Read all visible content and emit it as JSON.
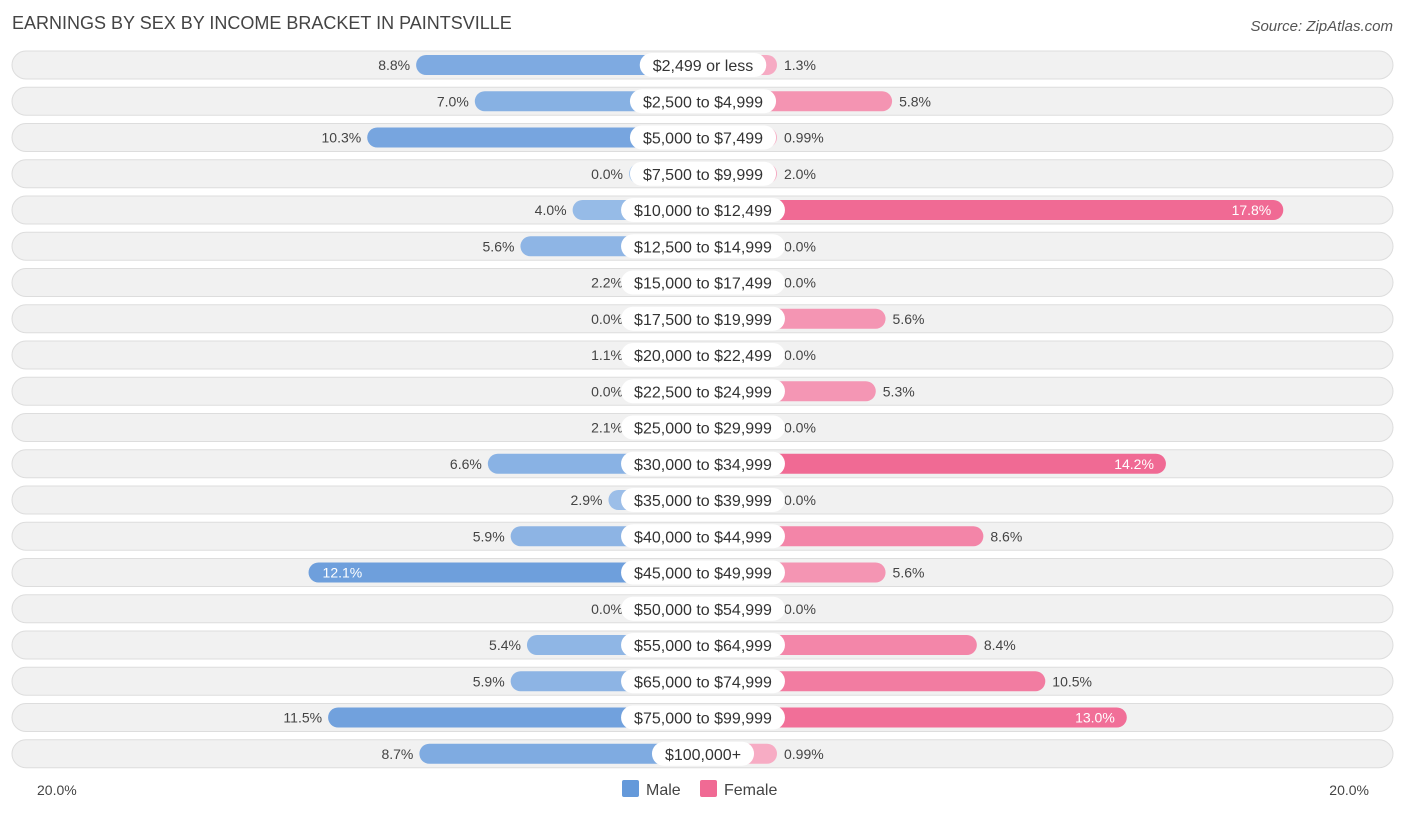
{
  "chart_data": {
    "type": "bar",
    "orientation": "horizontal-diverging",
    "title": "EARNINGS BY SEX BY INCOME BRACKET IN PAINTSVILLE",
    "source": "Source: ZipAtlas.com",
    "categories": [
      "$2,499 or less",
      "$2,500 to $4,999",
      "$5,000 to $7,499",
      "$7,500 to $9,999",
      "$10,000 to $12,499",
      "$12,500 to $14,999",
      "$15,000 to $17,499",
      "$17,500 to $19,999",
      "$20,000 to $22,499",
      "$22,500 to $24,999",
      "$25,000 to $29,999",
      "$30,000 to $34,999",
      "$35,000 to $39,999",
      "$40,000 to $44,999",
      "$45,000 to $49,999",
      "$50,000 to $54,999",
      "$55,000 to $64,999",
      "$65,000 to $74,999",
      "$75,000 to $99,999",
      "$100,000+"
    ],
    "series": [
      {
        "name": "Male",
        "values": [
          8.8,
          7.0,
          10.3,
          0.0,
          4.0,
          5.6,
          2.2,
          0.0,
          1.1,
          0.0,
          2.1,
          6.6,
          2.9,
          5.9,
          12.1,
          0.0,
          5.4,
          5.9,
          11.5,
          8.7
        ],
        "labels": [
          "8.8%",
          "7.0%",
          "10.3%",
          "0.0%",
          "4.0%",
          "5.6%",
          "2.2%",
          "0.0%",
          "1.1%",
          "0.0%",
          "2.1%",
          "6.6%",
          "2.9%",
          "5.9%",
          "12.1%",
          "0.0%",
          "5.4%",
          "5.9%",
          "11.5%",
          "8.7%"
        ]
      },
      {
        "name": "Female",
        "values": [
          1.3,
          5.8,
          0.99,
          2.0,
          17.8,
          0.0,
          0.0,
          5.6,
          0.0,
          5.3,
          0.0,
          14.2,
          0.0,
          8.6,
          5.6,
          0.0,
          8.4,
          10.5,
          13.0,
          0.99
        ],
        "labels": [
          "1.3%",
          "5.8%",
          "0.99%",
          "2.0%",
          "17.8%",
          "0.0%",
          "0.0%",
          "5.6%",
          "0.0%",
          "5.3%",
          "0.0%",
          "14.2%",
          "0.0%",
          "8.6%",
          "5.6%",
          "0.0%",
          "8.4%",
          "10.5%",
          "13.0%",
          "0.99%"
        ]
      }
    ],
    "axis": {
      "max": 20.0,
      "left_label": "20.0%",
      "right_label": "20.0%"
    },
    "legend": {
      "position": "bottom-center",
      "items": [
        "Male",
        "Female"
      ]
    },
    "colors": {
      "male_light": "#aac8ec",
      "male_strong": "#6499da",
      "female_light": "#f7b1c8",
      "female_strong": "#f06a94",
      "row_bg": "#f1f1f1",
      "row_border": "#dddddd",
      "title": "#444444",
      "text": "#444444",
      "source": "#555555"
    }
  }
}
